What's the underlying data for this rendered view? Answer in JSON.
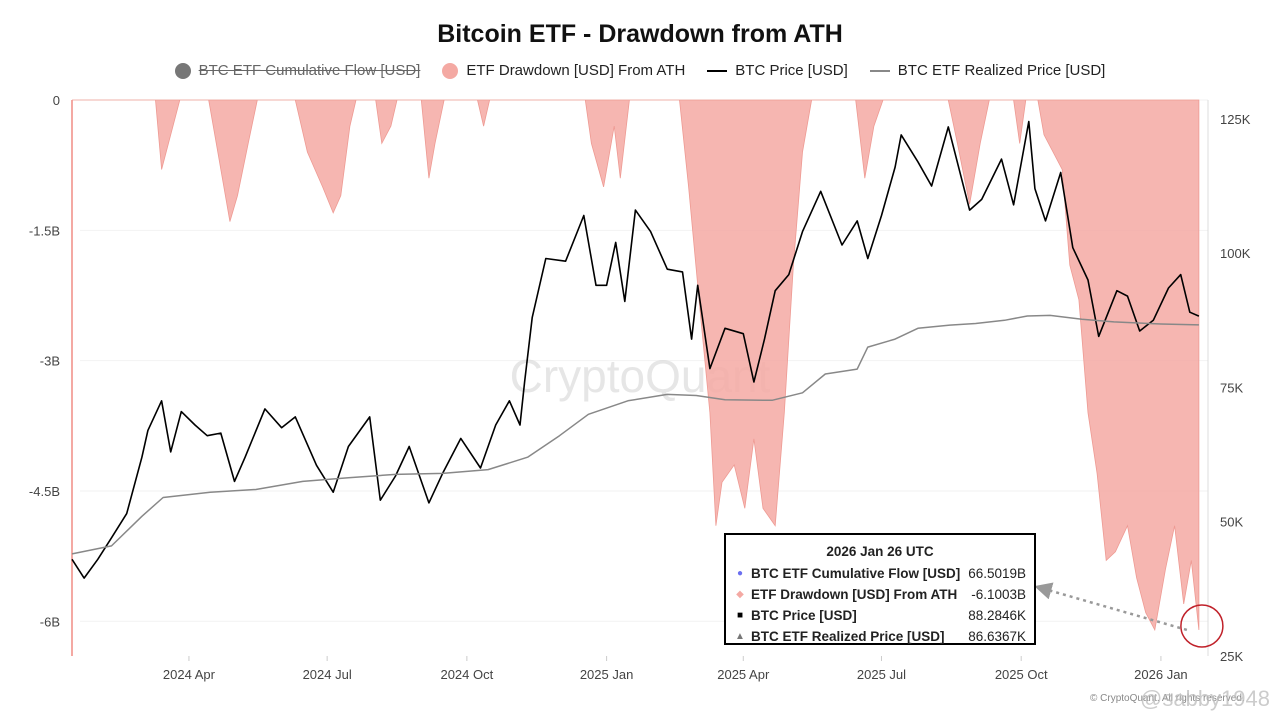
{
  "chart_data": {
    "type": "line",
    "title": "Bitcoin ETF - Drawdown from ATH",
    "legend": [
      {
        "name": "BTC ETF Cumulative Flow [USD]",
        "symbol": "dot",
        "color": "#777777",
        "disabled": true
      },
      {
        "name": "ETF Drawdown [USD] From ATH",
        "symbol": "dot",
        "color": "#f4a9a3",
        "disabled": false
      },
      {
        "name": "BTC Price [USD]",
        "symbol": "line",
        "color": "#000000",
        "disabled": false
      },
      {
        "name": "BTC ETF Realized Price [USD]",
        "symbol": "line",
        "color": "#888888",
        "disabled": false
      }
    ],
    "x_domain": [
      "2024-01-15",
      "2026-02-01"
    ],
    "x_ticks": [
      {
        "date": "2024-04-01",
        "label": "2024 Apr"
      },
      {
        "date": "2024-07-01",
        "label": "2024 Jul"
      },
      {
        "date": "2024-10-01",
        "label": "2024 Oct"
      },
      {
        "date": "2025-01-01",
        "label": "2025 Jan"
      },
      {
        "date": "2025-04-01",
        "label": "2025 Apr"
      },
      {
        "date": "2025-07-01",
        "label": "2025 Jul"
      },
      {
        "date": "2025-10-01",
        "label": "2025 Oct"
      },
      {
        "date": "2026-01-01",
        "label": "2026 Jan"
      }
    ],
    "y_left": {
      "min": -6.4,
      "max": 0,
      "unit": "B USD",
      "ticks": [
        {
          "value": 0,
          "label": "0"
        },
        {
          "value": -1.5,
          "label": "-1.5B"
        },
        {
          "value": -3,
          "label": "-3B"
        },
        {
          "value": -4.5,
          "label": "-4.5B"
        },
        {
          "value": -6,
          "label": "-6B"
        }
      ]
    },
    "y_right": {
      "min": 25,
      "max": 128.5,
      "unit": "K USD",
      "ticks": [
        {
          "value": 125,
          "label": "125K"
        },
        {
          "value": 100,
          "label": "100K"
        },
        {
          "value": 75,
          "label": "75K"
        },
        {
          "value": 50,
          "label": "50K"
        },
        {
          "value": 25,
          "label": "25K"
        }
      ]
    },
    "series": [
      {
        "name": "ETF Drawdown [USD] From ATH",
        "axis": "left",
        "unit": "B USD",
        "color": "#f4a9a3",
        "kind": "area",
        "points": [
          [
            "2024-01-15",
            0
          ],
          [
            "2024-03-10",
            0
          ],
          [
            "2024-03-14",
            -0.8
          ],
          [
            "2024-03-20",
            -0.4
          ],
          [
            "2024-03-26",
            0
          ],
          [
            "2024-04-14",
            0
          ],
          [
            "2024-04-20",
            -0.6
          ],
          [
            "2024-04-28",
            -1.4
          ],
          [
            "2024-05-03",
            -1.1
          ],
          [
            "2024-05-10",
            -0.5
          ],
          [
            "2024-05-16",
            0
          ],
          [
            "2024-06-10",
            0
          ],
          [
            "2024-06-18",
            -0.6
          ],
          [
            "2024-06-28",
            -1.0
          ],
          [
            "2024-07-05",
            -1.3
          ],
          [
            "2024-07-10",
            -1.1
          ],
          [
            "2024-07-16",
            -0.3
          ],
          [
            "2024-07-20",
            0
          ],
          [
            "2024-08-02",
            0
          ],
          [
            "2024-08-06",
            -0.5
          ],
          [
            "2024-08-12",
            -0.3
          ],
          [
            "2024-08-16",
            0
          ],
          [
            "2024-09-01",
            0
          ],
          [
            "2024-09-06",
            -0.9
          ],
          [
            "2024-09-10",
            -0.5
          ],
          [
            "2024-09-16",
            0
          ],
          [
            "2024-10-08",
            0
          ],
          [
            "2024-10-12",
            -0.3
          ],
          [
            "2024-10-16",
            0
          ],
          [
            "2024-12-18",
            0
          ],
          [
            "2024-12-22",
            -0.5
          ],
          [
            "2024-12-30",
            -1.0
          ],
          [
            "2025-01-06",
            -0.3
          ],
          [
            "2025-01-10",
            -0.9
          ],
          [
            "2025-01-16",
            0
          ],
          [
            "2025-02-18",
            0
          ],
          [
            "2025-02-24",
            -1.0
          ],
          [
            "2025-03-04",
            -2.5
          ],
          [
            "2025-03-10",
            -3.6
          ],
          [
            "2025-03-14",
            -4.9
          ],
          [
            "2025-03-18",
            -4.4
          ],
          [
            "2025-03-26",
            -4.2
          ],
          [
            "2025-04-02",
            -4.7
          ],
          [
            "2025-04-08",
            -3.9
          ],
          [
            "2025-04-14",
            -4.7
          ],
          [
            "2025-04-22",
            -4.9
          ],
          [
            "2025-04-28",
            -3.6
          ],
          [
            "2025-05-04",
            -1.9
          ],
          [
            "2025-05-10",
            -0.6
          ],
          [
            "2025-05-16",
            0
          ],
          [
            "2025-06-14",
            0
          ],
          [
            "2025-06-20",
            -0.9
          ],
          [
            "2025-06-26",
            -0.3
          ],
          [
            "2025-07-02",
            0
          ],
          [
            "2025-08-14",
            0
          ],
          [
            "2025-08-20",
            -0.5
          ],
          [
            "2025-08-28",
            -1.2
          ],
          [
            "2025-09-04",
            -0.5
          ],
          [
            "2025-09-10",
            0
          ],
          [
            "2025-09-26",
            0
          ],
          [
            "2025-09-30",
            -0.5
          ],
          [
            "2025-10-04",
            0
          ],
          [
            "2025-10-12",
            0
          ],
          [
            "2025-10-16",
            -0.4
          ],
          [
            "2025-10-28",
            -0.8
          ],
          [
            "2025-11-02",
            -1.9
          ],
          [
            "2025-11-08",
            -2.3
          ],
          [
            "2025-11-14",
            -3.6
          ],
          [
            "2025-11-20",
            -4.3
          ],
          [
            "2025-11-26",
            -5.3
          ],
          [
            "2025-12-02",
            -5.2
          ],
          [
            "2025-12-10",
            -4.9
          ],
          [
            "2025-12-16",
            -5.5
          ],
          [
            "2025-12-22",
            -5.9
          ],
          [
            "2025-12-28",
            -6.1
          ],
          [
            "2026-01-04",
            -5.4
          ],
          [
            "2026-01-10",
            -4.9
          ],
          [
            "2026-01-16",
            -5.8
          ],
          [
            "2026-01-21",
            -5.3
          ],
          [
            "2026-01-26",
            -6.1
          ]
        ]
      },
      {
        "name": "BTC Price [USD]",
        "axis": "right",
        "unit": "K USD",
        "color": "#000000",
        "kind": "line",
        "points": [
          [
            "2024-01-15",
            43
          ],
          [
            "2024-01-23",
            39.5
          ],
          [
            "2024-02-01",
            43
          ],
          [
            "2024-02-10",
            47
          ],
          [
            "2024-02-20",
            51.5
          ],
          [
            "2024-03-01",
            62
          ],
          [
            "2024-03-05",
            67
          ],
          [
            "2024-03-14",
            72.5
          ],
          [
            "2024-03-20",
            63
          ],
          [
            "2024-03-27",
            70.5
          ],
          [
            "2024-04-05",
            68
          ],
          [
            "2024-04-13",
            66
          ],
          [
            "2024-04-22",
            66.5
          ],
          [
            "2024-05-01",
            57.5
          ],
          [
            "2024-05-08",
            62
          ],
          [
            "2024-05-21",
            71
          ],
          [
            "2024-06-01",
            67.5
          ],
          [
            "2024-06-10",
            69.5
          ],
          [
            "2024-06-24",
            60.5
          ],
          [
            "2024-07-05",
            55.5
          ],
          [
            "2024-07-15",
            64
          ],
          [
            "2024-07-29",
            69.5
          ],
          [
            "2024-08-05",
            54
          ],
          [
            "2024-08-15",
            58.5
          ],
          [
            "2024-08-24",
            64
          ],
          [
            "2024-09-06",
            53.5
          ],
          [
            "2024-09-15",
            59
          ],
          [
            "2024-09-27",
            65.5
          ],
          [
            "2024-10-10",
            60
          ],
          [
            "2024-10-20",
            68
          ],
          [
            "2024-10-29",
            72.5
          ],
          [
            "2024-11-05",
            68
          ],
          [
            "2024-11-08",
            76
          ],
          [
            "2024-11-13",
            88
          ],
          [
            "2024-11-22",
            99
          ],
          [
            "2024-12-05",
            98.5
          ],
          [
            "2024-12-17",
            107
          ],
          [
            "2024-12-25",
            94
          ],
          [
            "2025-01-01",
            94
          ],
          [
            "2025-01-07",
            102
          ],
          [
            "2025-01-13",
            91
          ],
          [
            "2025-01-20",
            108
          ],
          [
            "2025-01-30",
            104
          ],
          [
            "2025-02-10",
            97
          ],
          [
            "2025-02-20",
            96.5
          ],
          [
            "2025-02-26",
            84
          ],
          [
            "2025-03-02",
            94
          ],
          [
            "2025-03-10",
            78.5
          ],
          [
            "2025-03-20",
            86
          ],
          [
            "2025-04-01",
            85
          ],
          [
            "2025-04-08",
            76
          ],
          [
            "2025-04-15",
            84
          ],
          [
            "2025-04-22",
            93
          ],
          [
            "2025-05-01",
            96
          ],
          [
            "2025-05-10",
            104
          ],
          [
            "2025-05-22",
            111.5
          ],
          [
            "2025-06-05",
            101.5
          ],
          [
            "2025-06-15",
            106
          ],
          [
            "2025-06-22",
            99
          ],
          [
            "2025-07-01",
            107
          ],
          [
            "2025-07-10",
            116
          ],
          [
            "2025-07-14",
            122
          ],
          [
            "2025-07-25",
            117
          ],
          [
            "2025-08-03",
            112.5
          ],
          [
            "2025-08-14",
            123.5
          ],
          [
            "2025-08-28",
            108
          ],
          [
            "2025-09-05",
            110
          ],
          [
            "2025-09-18",
            117.5
          ],
          [
            "2025-09-26",
            109
          ],
          [
            "2025-10-06",
            124.5
          ],
          [
            "2025-10-10",
            112
          ],
          [
            "2025-10-17",
            106
          ],
          [
            "2025-10-27",
            115
          ],
          [
            "2025-11-04",
            101
          ],
          [
            "2025-11-14",
            95
          ],
          [
            "2025-11-21",
            84.5
          ],
          [
            "2025-12-03",
            93
          ],
          [
            "2025-12-10",
            92
          ],
          [
            "2025-12-18",
            85.5
          ],
          [
            "2025-12-27",
            87.5
          ],
          [
            "2026-01-06",
            93.5
          ],
          [
            "2026-01-14",
            96
          ],
          [
            "2026-01-20",
            89
          ],
          [
            "2026-01-26",
            88.28
          ]
        ]
      },
      {
        "name": "BTC ETF Realized Price [USD]",
        "axis": "right",
        "unit": "K USD",
        "color": "#888888",
        "kind": "line",
        "points": [
          [
            "2024-01-15",
            44
          ],
          [
            "2024-02-10",
            45.5
          ],
          [
            "2024-03-01",
            51
          ],
          [
            "2024-03-15",
            54.5
          ],
          [
            "2024-04-15",
            55.5
          ],
          [
            "2024-05-15",
            56
          ],
          [
            "2024-06-15",
            57.5
          ],
          [
            "2024-07-15",
            58.2
          ],
          [
            "2024-08-15",
            58.8
          ],
          [
            "2024-09-15",
            59
          ],
          [
            "2024-10-15",
            59.7
          ],
          [
            "2024-11-10",
            62
          ],
          [
            "2024-12-01",
            66
          ],
          [
            "2024-12-20",
            70
          ],
          [
            "2025-01-15",
            72.5
          ],
          [
            "2025-02-10",
            73.7
          ],
          [
            "2025-03-01",
            73.5
          ],
          [
            "2025-03-20",
            72.7
          ],
          [
            "2025-04-20",
            72.6
          ],
          [
            "2025-05-10",
            74
          ],
          [
            "2025-05-25",
            77.5
          ],
          [
            "2025-06-15",
            78.4
          ],
          [
            "2025-06-22",
            82.5
          ],
          [
            "2025-07-10",
            84
          ],
          [
            "2025-07-25",
            86
          ],
          [
            "2025-08-15",
            86.6
          ],
          [
            "2025-09-01",
            86.9
          ],
          [
            "2025-09-20",
            87.5
          ],
          [
            "2025-10-05",
            88.3
          ],
          [
            "2025-10-20",
            88.4
          ],
          [
            "2025-11-10",
            87.7
          ],
          [
            "2025-12-01",
            87.2
          ],
          [
            "2026-01-01",
            86.8
          ],
          [
            "2026-01-26",
            86.64
          ]
        ]
      }
    ]
  },
  "tooltip": {
    "title": "2026 Jan 26 UTC",
    "rows": [
      {
        "label": "BTC ETF Cumulative Flow [USD]",
        "value": "66.5019B",
        "symbol": "●",
        "color": "#6b6ff0"
      },
      {
        "label": "ETF Drawdown [USD] From ATH",
        "value": "-6.1003B",
        "symbol": "◆",
        "color": "#f4a9a3"
      },
      {
        "label": "BTC Price [USD]",
        "value": "88.2846K",
        "symbol": "■",
        "color": "#000000"
      },
      {
        "label": "BTC ETF Realized Price [USD]",
        "value": "86.6367K",
        "symbol": "▲",
        "color": "#777777"
      }
    ]
  },
  "watermark": "CryptoQuant",
  "copyright": "© CryptoQuant. All rights reserved.",
  "credit": "@sabby1948"
}
